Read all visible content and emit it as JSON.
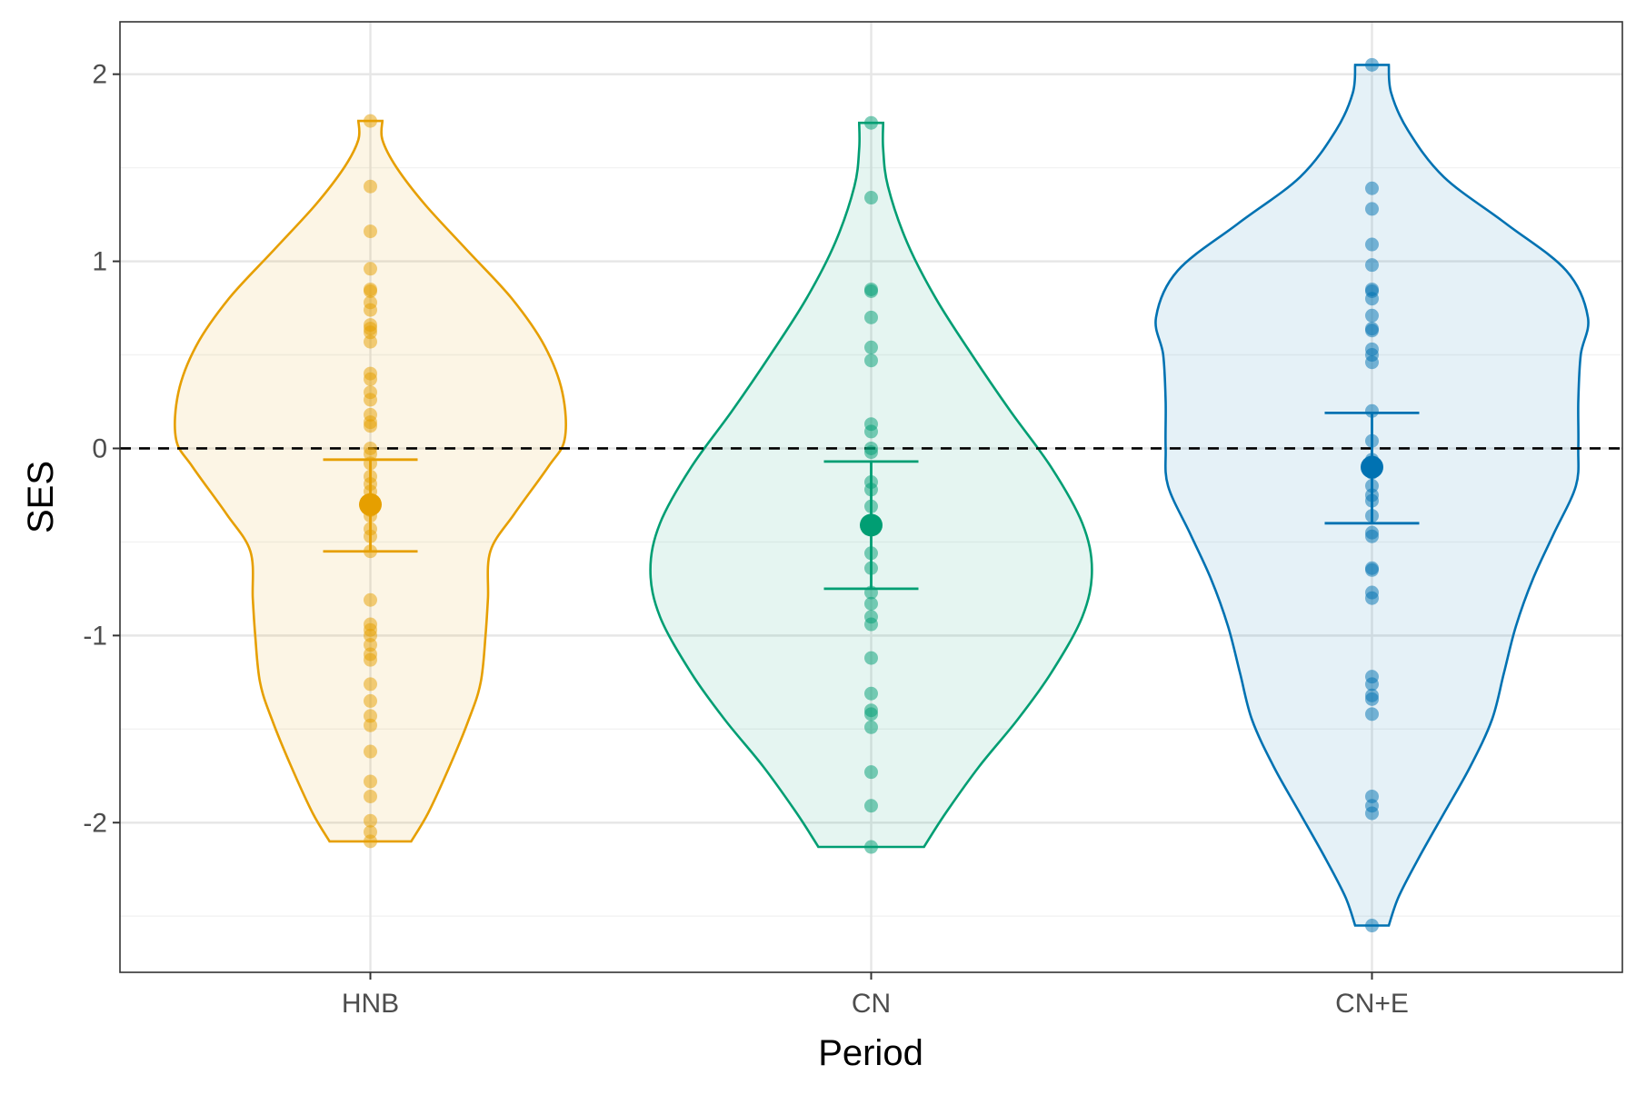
{
  "chart_data": {
    "type": "violin",
    "xlabel": "Period",
    "ylabel": "SES",
    "categories": [
      "HNB",
      "CN",
      "CN+E"
    ],
    "ylim": [
      -2.8,
      2.28
    ],
    "yticks": [
      -2,
      -1,
      0,
      1,
      2
    ],
    "ytick_labels": [
      "-2",
      "-1",
      "0",
      "1",
      "2"
    ],
    "reference_line": {
      "y": 0,
      "style": "dashed"
    },
    "grid": true,
    "colors": {
      "HNB": "#E69F00",
      "CN": "#009E73",
      "CN+E": "#0072B2",
      "reference": "#000000",
      "grid_major": "#e6e6e6",
      "grid_minor": "#f2f2f2",
      "axis_text": "#4d4d4d"
    },
    "series": [
      {
        "category": "HNB",
        "mean": -0.3,
        "ci": [
          -0.55,
          -0.06
        ],
        "points": [
          1.75,
          1.4,
          1.16,
          0.96,
          0.85,
          0.84,
          0.78,
          0.74,
          0.66,
          0.64,
          0.62,
          0.57,
          0.4,
          0.37,
          0.3,
          0.26,
          0.18,
          0.14,
          0.12,
          0.0,
          -0.03,
          -0.08,
          -0.15,
          -0.19,
          -0.23,
          -0.28,
          -0.33,
          -0.36,
          -0.43,
          -0.47,
          -0.55,
          -0.81,
          -0.94,
          -0.97,
          -1.0,
          -1.05,
          -1.1,
          -1.13,
          -1.26,
          -1.35,
          -1.43,
          -1.48,
          -1.62,
          -1.78,
          -1.86,
          -1.99,
          -2.05,
          -2.1
        ],
        "density": [
          [
            -2.1,
            0.34
          ],
          [
            -1.95,
            0.48
          ],
          [
            -1.7,
            0.66
          ],
          [
            -1.45,
            0.82
          ],
          [
            -1.25,
            0.92
          ],
          [
            -1.0,
            0.96
          ],
          [
            -0.8,
            0.98
          ],
          [
            -0.55,
            1.0
          ],
          [
            -0.35,
            1.2
          ],
          [
            -0.1,
            1.48
          ],
          [
            0.05,
            1.62
          ],
          [
            0.3,
            1.6
          ],
          [
            0.55,
            1.45
          ],
          [
            0.8,
            1.18
          ],
          [
            1.05,
            0.82
          ],
          [
            1.3,
            0.46
          ],
          [
            1.5,
            0.22
          ],
          [
            1.65,
            0.1
          ],
          [
            1.75,
            0.1
          ]
        ]
      },
      {
        "category": "CN",
        "mean": -0.41,
        "ci": [
          -0.75,
          -0.07
        ],
        "points": [
          1.74,
          1.34,
          0.85,
          0.84,
          0.7,
          0.54,
          0.47,
          0.13,
          0.09,
          0.0,
          -0.02,
          -0.18,
          -0.22,
          -0.31,
          -0.39,
          -0.56,
          -0.64,
          -0.77,
          -0.83,
          -0.9,
          -0.94,
          -1.12,
          -1.31,
          -1.4,
          -1.42,
          -1.49,
          -1.73,
          -1.91,
          -2.13
        ],
        "density": [
          [
            -2.13,
            0.44
          ],
          [
            -1.95,
            0.62
          ],
          [
            -1.7,
            0.9
          ],
          [
            -1.45,
            1.22
          ],
          [
            -1.2,
            1.5
          ],
          [
            -0.9,
            1.76
          ],
          [
            -0.65,
            1.84
          ],
          [
            -0.4,
            1.76
          ],
          [
            -0.1,
            1.5
          ],
          [
            0.2,
            1.16
          ],
          [
            0.5,
            0.84
          ],
          [
            0.8,
            0.54
          ],
          [
            1.1,
            0.3
          ],
          [
            1.4,
            0.14
          ],
          [
            1.6,
            0.1
          ],
          [
            1.74,
            0.1
          ]
        ]
      },
      {
        "category": "CN+E",
        "mean": -0.1,
        "ci": [
          -0.4,
          0.19
        ],
        "points": [
          2.05,
          1.39,
          1.28,
          1.09,
          0.98,
          0.85,
          0.84,
          0.8,
          0.71,
          0.64,
          0.63,
          0.53,
          0.5,
          0.46,
          0.2,
          0.04,
          -0.06,
          -0.13,
          -0.2,
          -0.25,
          -0.28,
          -0.36,
          -0.45,
          -0.47,
          -0.64,
          -0.65,
          -0.77,
          -0.8,
          -1.22,
          -1.26,
          -1.32,
          -1.34,
          -1.42,
          -1.86,
          -1.91,
          -1.95,
          -2.55
        ],
        "density": [
          [
            -2.55,
            0.14
          ],
          [
            -2.4,
            0.22
          ],
          [
            -2.2,
            0.38
          ],
          [
            -1.95,
            0.6
          ],
          [
            -1.7,
            0.82
          ],
          [
            -1.45,
            1.0
          ],
          [
            -1.2,
            1.1
          ],
          [
            -0.95,
            1.2
          ],
          [
            -0.7,
            1.34
          ],
          [
            -0.45,
            1.52
          ],
          [
            -0.2,
            1.7
          ],
          [
            0.0,
            1.72
          ],
          [
            0.25,
            1.72
          ],
          [
            0.5,
            1.74
          ],
          [
            0.7,
            1.8
          ],
          [
            0.95,
            1.62
          ],
          [
            1.2,
            1.12
          ],
          [
            1.45,
            0.6
          ],
          [
            1.7,
            0.3
          ],
          [
            1.9,
            0.16
          ],
          [
            2.05,
            0.14
          ]
        ]
      }
    ]
  }
}
